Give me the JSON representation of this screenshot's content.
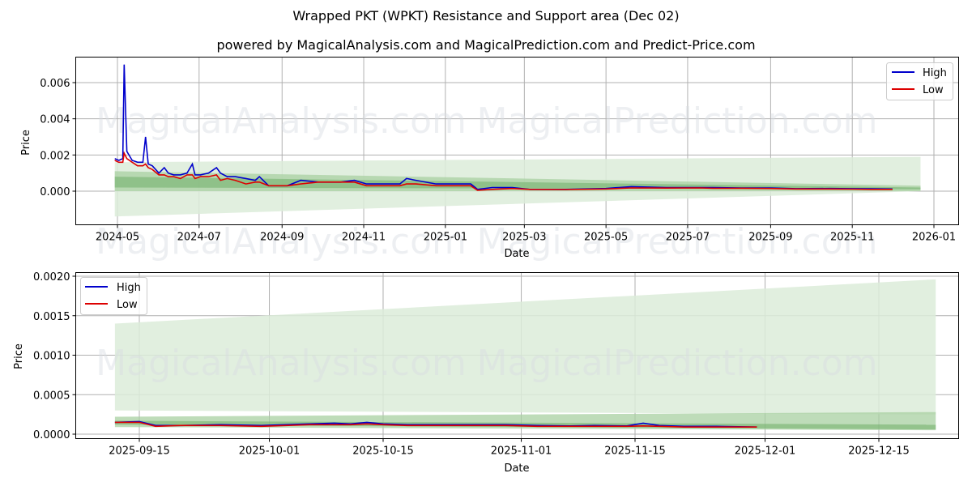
{
  "header": {
    "title": "Wrapped PKT (WPKT) Resistance and Support area (Dec 02)",
    "subtitle": "powered by MagicalAnalysis.com and MagicalPrediction.com and Predict-Price.com"
  },
  "watermarks": [
    "MagicalAnalysis.com",
    "MagicalPrediction.com"
  ],
  "colors": {
    "high": "#0000cc",
    "low": "#dd0000",
    "band_light": "#dcecd9",
    "band_mid": "#a8d0a2",
    "band_dark": "#6fae68",
    "grid": "#b0b0b0"
  },
  "legend": {
    "high_label": "High",
    "low_label": "Low"
  },
  "chart_data": [
    {
      "type": "line",
      "panel": "top",
      "title": "Wrapped PKT (WPKT) Resistance and Support area (Dec 02)",
      "xlabel": "Date",
      "ylabel": "Price",
      "x_ticks": [
        "2024-05",
        "2024-07",
        "2024-09",
        "2024-11",
        "2025-01",
        "2025-03",
        "2025-05",
        "2025-07",
        "2025-09",
        "2025-11",
        "2026-01"
      ],
      "y_ticks": [
        "0.000",
        "0.002",
        "0.004",
        "0.006"
      ],
      "ylim": [
        -0.0018,
        0.0075
      ],
      "grid": true,
      "legend_position": "upper right",
      "x": [
        "2024-04-29",
        "2024-05-02",
        "2024-05-05",
        "2024-05-06",
        "2024-05-08",
        "2024-05-12",
        "2024-05-16",
        "2024-05-20",
        "2024-05-22",
        "2024-05-24",
        "2024-05-27",
        "2024-06-01",
        "2024-06-05",
        "2024-06-08",
        "2024-06-12",
        "2024-06-17",
        "2024-06-22",
        "2024-06-26",
        "2024-06-28",
        "2024-07-02",
        "2024-07-08",
        "2024-07-14",
        "2024-07-17",
        "2024-07-22",
        "2024-07-28",
        "2024-08-05",
        "2024-08-12",
        "2024-08-15",
        "2024-08-22",
        "2024-09-05",
        "2024-09-15",
        "2024-09-28",
        "2024-10-15",
        "2024-10-25",
        "2024-11-03",
        "2024-11-20",
        "2024-11-28",
        "2024-12-03",
        "2024-12-10",
        "2024-12-25",
        "2025-01-10",
        "2025-01-20",
        "2025-01-25",
        "2025-02-05",
        "2025-02-20",
        "2025-03-05",
        "2025-04-01",
        "2025-05-01",
        "2025-05-20",
        "2025-06-15",
        "2025-07-10",
        "2025-07-20",
        "2025-08-10",
        "2025-09-01",
        "2025-09-20",
        "2025-10-15",
        "2025-11-01",
        "2025-11-15",
        "2025-12-01"
      ],
      "series": [
        {
          "name": "High",
          "values": [
            0.0018,
            0.0017,
            0.0018,
            0.007,
            0.0022,
            0.0017,
            0.0016,
            0.0016,
            0.003,
            0.0015,
            0.0014,
            0.001,
            0.0013,
            0.001,
            0.0009,
            0.0009,
            0.001,
            0.0015,
            0.0009,
            0.0009,
            0.001,
            0.0013,
            0.001,
            0.0008,
            0.0008,
            0.0007,
            0.0006,
            0.0008,
            0.0003,
            0.0003,
            0.0006,
            0.0005,
            0.0005,
            0.0006,
            0.0004,
            0.0004,
            0.0004,
            0.0007,
            0.0006,
            0.0004,
            0.0004,
            0.0004,
            0.0001,
            0.0002,
            0.0002,
            0.0001,
            0.0001,
            0.00015,
            0.00025,
            0.0002,
            0.0002,
            0.0002,
            0.00018,
            0.00018,
            0.00014,
            0.00015,
            0.00014,
            0.00013,
            0.00012
          ]
        },
        {
          "name": "Low",
          "values": [
            0.0017,
            0.0016,
            0.0016,
            0.0021,
            0.0018,
            0.0016,
            0.0014,
            0.0014,
            0.0015,
            0.0013,
            0.0012,
            0.0009,
            0.0009,
            0.0008,
            0.0008,
            0.0007,
            0.0009,
            0.0009,
            0.0007,
            0.0008,
            0.0008,
            0.0009,
            0.0006,
            0.0007,
            0.0006,
            0.0004,
            0.0005,
            0.0005,
            0.0003,
            0.0003,
            0.0004,
            0.0005,
            0.0005,
            0.0005,
            0.0003,
            0.0003,
            0.0003,
            0.0004,
            0.0004,
            0.0003,
            0.0003,
            0.0003,
            5e-05,
            0.0001,
            0.00015,
            0.0001,
            9e-05,
            0.00012,
            0.00018,
            0.00017,
            0.00018,
            0.00016,
            0.00016,
            0.00015,
            0.00012,
            0.00012,
            0.00011,
            0.0001,
            0.0001
          ]
        }
      ],
      "support_resistance_band": {
        "start": "2024-04-29",
        "end": "2025-12-22",
        "outer_upper": [
          0.0016,
          0.0019
        ],
        "outer_lower": [
          -0.0014,
          0.0
        ],
        "mid_upper": [
          0.0011,
          0.0003
        ],
        "mid_lower": [
          0.0,
          0.0
        ],
        "inner_upper": [
          0.0008,
          0.0002
        ],
        "inner_lower": [
          0.0002,
          0.0001
        ]
      }
    },
    {
      "type": "line",
      "panel": "bottom",
      "xlabel": "Date",
      "ylabel": "Price",
      "x_ticks": [
        "2025-09-15",
        "2025-10-01",
        "2025-10-15",
        "2025-11-01",
        "2025-11-15",
        "2025-12-01",
        "2025-12-15"
      ],
      "y_ticks": [
        "0.0000",
        "0.0005",
        "0.0010",
        "0.0015",
        "0.0020"
      ],
      "ylim": [
        -5e-05,
        0.00207
      ],
      "grid": true,
      "legend_position": "upper left",
      "x": [
        "2025-09-12",
        "2025-09-15",
        "2025-09-17",
        "2025-09-20",
        "2025-09-25",
        "2025-09-30",
        "2025-10-03",
        "2025-10-06",
        "2025-10-09",
        "2025-10-11",
        "2025-10-13",
        "2025-10-15",
        "2025-10-18",
        "2025-10-22",
        "2025-10-26",
        "2025-10-30",
        "2025-11-03",
        "2025-11-07",
        "2025-11-10",
        "2025-11-14",
        "2025-11-16",
        "2025-11-18",
        "2025-11-21",
        "2025-11-25",
        "2025-11-30"
      ],
      "series": [
        {
          "name": "High",
          "values": [
            0.00015,
            0.00016,
            0.00011,
            0.00011,
            0.00012,
            0.00011,
            0.00012,
            0.00013,
            0.00014,
            0.00013,
            0.00015,
            0.00013,
            0.00012,
            0.00012,
            0.00012,
            0.00012,
            0.00011,
            0.000105,
            0.00011,
            0.000105,
            0.00014,
            0.00011,
            0.0001,
            0.0001,
            9e-05
          ]
        },
        {
          "name": "Low",
          "values": [
            0.00015,
            0.00015,
            0.0001,
            0.00011,
            0.00011,
            0.0001,
            0.00011,
            0.00012,
            0.00012,
            0.00012,
            0.00013,
            0.00012,
            0.00011,
            0.00011,
            0.00011,
            0.00011,
            0.0001,
            0.0001,
            0.0001,
            0.0001,
            0.000105,
            0.0001,
            9e-05,
            9e-05,
            9e-05
          ]
        }
      ],
      "support_resistance_band": {
        "start": "2025-09-12",
        "end": "2025-12-22",
        "outer_upper": [
          0.0014,
          0.00196
        ],
        "outer_lower": [
          0.0003,
          0.00025
        ],
        "mid_upper": [
          0.00022,
          0.00028
        ],
        "mid_lower": [
          9e-05,
          5e-05
        ],
        "inner_upper": [
          0.00017,
          0.00012
        ],
        "inner_lower": [
          0.00012,
          6e-05
        ]
      }
    }
  ]
}
